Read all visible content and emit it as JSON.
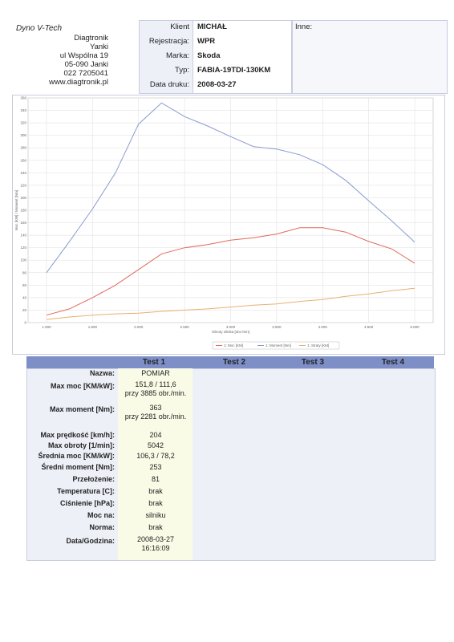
{
  "header": {
    "company": "Dyno V-Tech",
    "address": [
      "Diagtronik",
      "Yanki",
      "ul Wspólna 19",
      "05-090 Janki",
      "022 7205041",
      "www.diagtronik.pl"
    ]
  },
  "info": {
    "fields": [
      {
        "label": "Klient",
        "value": "MICHAŁ"
      },
      {
        "label": "Rejestracja:",
        "value": "WPR"
      },
      {
        "label": "Marka:",
        "value": "Skoda"
      },
      {
        "label": "Typ:",
        "value": "FABIA-19TDI-130KM"
      },
      {
        "label": "Data druku:",
        "value": "2008-03-27"
      }
    ],
    "other_label": "Inne:"
  },
  "chart_data": {
    "type": "line",
    "x_label": "Obroty silnika [obr./min]",
    "y_label": "Moc [KW] / Moment [Nm]",
    "x": [
      1000,
      1250,
      1500,
      1750,
      2000,
      2250,
      2500,
      2750,
      3000,
      3250,
      3500,
      3750,
      4000,
      4250,
      4500,
      4750,
      5000
    ],
    "series": [
      {
        "name": "1: Moc [KM]",
        "color": "#e06a5a",
        "values": [
          12,
          22,
          40,
          60,
          85,
          110,
          120,
          125,
          132,
          136,
          142,
          152,
          152,
          145,
          130,
          118,
          95
        ]
      },
      {
        "name": "1: Moment [Nm]",
        "color": "#8a9ad0",
        "values": [
          80,
          130,
          182,
          240,
          318,
          352,
          330,
          315,
          298,
          282,
          278,
          269,
          253,
          228,
          195,
          163,
          129
        ]
      },
      {
        "name": "1: Straty [KM]",
        "color": "#e8b070",
        "values": [
          5,
          9,
          12,
          14,
          15,
          18,
          20,
          22,
          25,
          28,
          30,
          34,
          37,
          42,
          46,
          51,
          55
        ]
      }
    ],
    "xlim": [
      800,
      5200
    ],
    "ylim": [
      0,
      360
    ],
    "xticks": [
      {
        "value": 1000,
        "label": "1.000"
      },
      {
        "value": 1500,
        "label": "1.500"
      },
      {
        "value": 2000,
        "label": "2.000"
      },
      {
        "value": 2500,
        "label": "2.500"
      },
      {
        "value": 3000,
        "label": "3.000"
      },
      {
        "value": 3500,
        "label": "3.500"
      },
      {
        "value": 4000,
        "label": "4.000"
      },
      {
        "value": 4500,
        "label": "4.500"
      },
      {
        "value": 5000,
        "label": "5.000"
      }
    ],
    "yticks": [
      0,
      20,
      40,
      60,
      80,
      100,
      120,
      140,
      160,
      180,
      200,
      220,
      240,
      260,
      280,
      300,
      320,
      340,
      360
    ],
    "grid": true
  },
  "table": {
    "columns": [
      "Test 1",
      "Test 2",
      "Test 3",
      "Test 4"
    ],
    "rows": [
      {
        "label": "Nazwa:",
        "value": [
          "POMIAR"
        ]
      },
      {
        "label": "Max moc [KM/kW]:",
        "value": [
          "151,8 / 111,6",
          "przy 3885 obr./min."
        ]
      },
      {
        "label": "Max moment [Nm]:",
        "value": [
          "363",
          "przy 2281 obr./min."
        ]
      },
      {
        "label": "Max prędkość [km/h]:",
        "value": [
          "204"
        ]
      },
      {
        "label": "Max obroty [1/min]:",
        "value": [
          "5042"
        ]
      },
      {
        "label": "Średnia moc [KM/kW]:",
        "value": [
          "106,3 / 78,2"
        ]
      },
      {
        "label": "Średni moment [Nm]:",
        "value": [
          "253"
        ]
      },
      {
        "label": "Przełożenie:",
        "value": [
          "81"
        ]
      },
      {
        "label": "Temperatura [C]:",
        "value": [
          "brak"
        ]
      },
      {
        "label": "Ciśnienie [hPa]:",
        "value": [
          "brak"
        ]
      },
      {
        "label": "Moc na:",
        "value": [
          "silniku"
        ]
      },
      {
        "label": "Norma:",
        "value": [
          "brak"
        ]
      },
      {
        "label": "Data/Godzina:",
        "value": [
          "2008-03-27",
          "16:16:09"
        ]
      }
    ]
  }
}
